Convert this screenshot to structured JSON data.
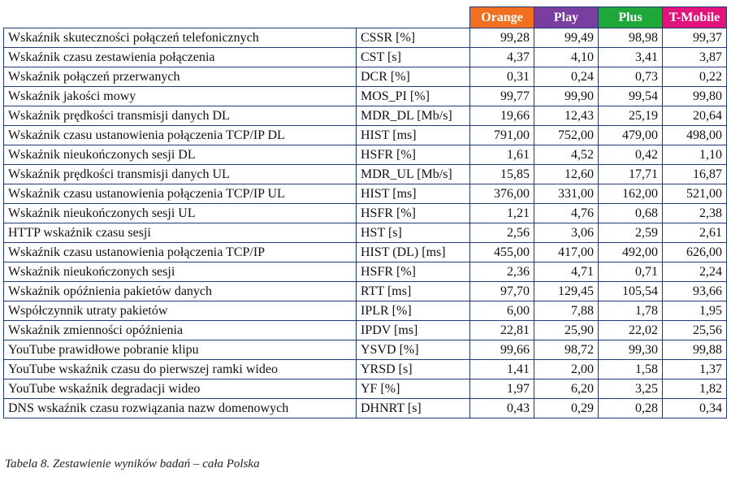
{
  "operators": [
    {
      "name": "Orange",
      "color": "#f07020"
    },
    {
      "name": "Play",
      "color": "#7a3da0"
    },
    {
      "name": "Plus",
      "color": "#1fa83a"
    },
    {
      "name": "T-Mobile",
      "color": "#e2147c"
    }
  ],
  "rows": [
    {
      "name": "Wskaźnik skuteczności połączeń telefonicznych",
      "symbol": "CSSR [%]",
      "values": [
        "99,28",
        "99,49",
        "98,98",
        "99,37"
      ]
    },
    {
      "name": "Wskaźnik czasu zestawienia połączenia",
      "symbol": "CST [s]",
      "values": [
        "4,37",
        "4,10",
        "3,41",
        "3,87"
      ]
    },
    {
      "name": "Wskaźnik połączeń przerwanych",
      "symbol": "DCR [%]",
      "values": [
        "0,31",
        "0,24",
        "0,73",
        "0,22"
      ]
    },
    {
      "name": "Wskaźnik jakości mowy",
      "symbol": "MOS_PI [%]",
      "values": [
        "99,77",
        "99,90",
        "99,54",
        "99,80"
      ]
    },
    {
      "name": "Wskaźnik prędkości transmisji danych DL",
      "symbol": "MDR_DL [Mb/s]",
      "values": [
        "19,66",
        "12,43",
        "25,19",
        "20,64"
      ]
    },
    {
      "name": "Wskaźnik czasu ustanowienia połączenia TCP/IP DL",
      "symbol": "HIST  [ms]",
      "values": [
        "791,00",
        "752,00",
        "479,00",
        "498,00"
      ]
    },
    {
      "name": "Wskaźnik nieukończonych sesji DL",
      "symbol": "HSFR [%]",
      "values": [
        "1,61",
        "4,52",
        "0,42",
        "1,10"
      ]
    },
    {
      "name": "Wskaźnik prędkości transmisji danych UL",
      "symbol": "MDR_UL [Mb/s]",
      "values": [
        "15,85",
        "12,60",
        "17,71",
        "16,87"
      ]
    },
    {
      "name": "Wskaźnik czasu ustanowienia połączenia TCP/IP UL",
      "symbol": "HIST [ms]",
      "values": [
        "376,00",
        "331,00",
        "162,00",
        "521,00"
      ]
    },
    {
      "name": "Wskaźnik nieukończonych sesji UL",
      "symbol": "HSFR [%]",
      "values": [
        "1,21",
        "4,76",
        "0,68",
        "2,38"
      ]
    },
    {
      "name": "HTTP wskaźnik czasu sesji",
      "symbol": "HST [s]",
      "values": [
        "2,56",
        "3,06",
        "2,59",
        "2,61"
      ]
    },
    {
      "name": "Wskaźnik czasu ustanowienia połączenia TCP/IP",
      "symbol": "HIST (DL) [ms]",
      "values": [
        "455,00",
        "417,00",
        "492,00",
        "626,00"
      ]
    },
    {
      "name": "Wskaźnik nieukończonych sesji",
      "symbol": "HSFR [%]",
      "values": [
        "2,36",
        "4,71",
        "0,71",
        "2,24"
      ]
    },
    {
      "name": "Wskaźnik opóźnienia pakietów danych",
      "symbol": "RTT [ms]",
      "values": [
        "97,70",
        "129,45",
        "105,54",
        "93,66"
      ]
    },
    {
      "name": "Współczynnik utraty pakietów",
      "symbol": "IPLR [%]",
      "values": [
        "6,00",
        "7,88",
        "1,78",
        "1,95"
      ]
    },
    {
      "name": "Wskaźnik zmienności opóźnienia",
      "symbol": "IPDV [ms]",
      "values": [
        "22,81",
        "25,90",
        "22,02",
        "25,56"
      ]
    },
    {
      "name": "YouTube prawidłowe pobranie klipu",
      "symbol": "YSVD [%]",
      "values": [
        "99,66",
        "98,72",
        "99,30",
        "99,88"
      ]
    },
    {
      "name": "YouTube wskaźnik czasu do pierwszej ramki wideo",
      "symbol": "YRSD [s]",
      "values": [
        "1,41",
        "2,00",
        "1,58",
        "1,37"
      ]
    },
    {
      "name": "YouTube wskaźnik degradacji wideo",
      "symbol": "YF [%]",
      "values": [
        "1,97",
        "6,20",
        "3,25",
        "1,82"
      ]
    },
    {
      "name": "DNS wskaźnik czasu rozwiązania nazw domenowych",
      "symbol": "DHNRT [s]",
      "values": [
        "0,43",
        "0,29",
        "0,28",
        "0,34"
      ]
    }
  ],
  "caption": "Tabela 8. Zestawienie wyników badań – cała Polska"
}
